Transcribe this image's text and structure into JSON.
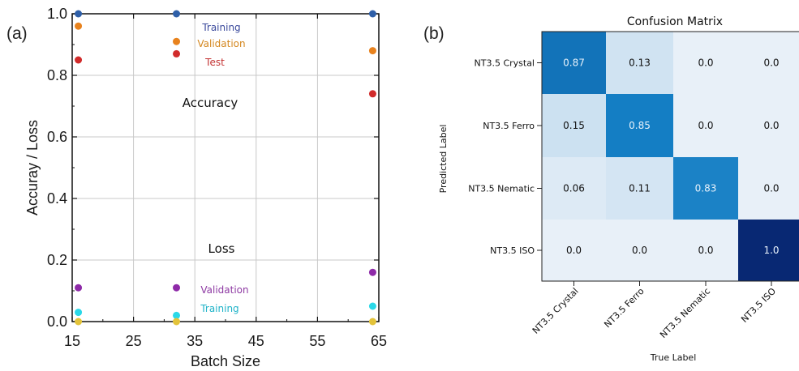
{
  "chart_data": [
    {
      "panel": "(a)",
      "type": "scatter",
      "xlabel": "Batch Size",
      "ylabel": "Accuray  /  Loss",
      "xlim": [
        15,
        65
      ],
      "ylim": [
        0.0,
        1.0
      ],
      "xticks": [
        "15",
        "25",
        "35",
        "45",
        "55",
        "65"
      ],
      "yticks": [
        "0.0",
        "0.2",
        "0.4",
        "0.6",
        "0.8",
        "1.0"
      ],
      "grid": true,
      "section_labels": {
        "accuracy": "Accuracy",
        "loss": "Loss"
      },
      "series": [
        {
          "name": "Training",
          "group": "accuracy",
          "color": "#2e5fa8",
          "label_color": "#3b4a9c",
          "points": [
            [
              16,
              1.0
            ],
            [
              32,
              1.0
            ],
            [
              64,
              1.0
            ]
          ]
        },
        {
          "name": "Validation",
          "group": "accuracy",
          "color": "#e8821d",
          "label_color": "#d4871f",
          "points": [
            [
              16,
              0.96
            ],
            [
              32,
              0.91
            ],
            [
              64,
              0.88
            ]
          ]
        },
        {
          "name": "Test",
          "group": "accuracy",
          "color": "#d12b2b",
          "label_color": "#c43535",
          "points": [
            [
              16,
              0.85
            ],
            [
              32,
              0.87
            ],
            [
              64,
              0.74
            ]
          ]
        },
        {
          "name": "Validation",
          "group": "loss",
          "color": "#8e2aa8",
          "label_color": "#8e3aa3",
          "points": [
            [
              16,
              0.11
            ],
            [
              32,
              0.11
            ],
            [
              64,
              0.16
            ]
          ]
        },
        {
          "name": "Training",
          "group": "loss",
          "color": "#2ad8e8",
          "label_color": "#1fb3c8",
          "points": [
            [
              16,
              0.03
            ],
            [
              32,
              0.02
            ],
            [
              64,
              0.05
            ]
          ]
        },
        {
          "name": "",
          "group": "loss",
          "color": "#e3c33a",
          "label_color": "#e3c33a",
          "points": [
            [
              16,
              0.0
            ],
            [
              32,
              0.0
            ],
            [
              64,
              0.0
            ]
          ]
        }
      ]
    },
    {
      "panel": "(b)",
      "type": "heatmap",
      "title": "Confusion Matrix",
      "xlabel": "True Label",
      "ylabel": "Predicted Label",
      "row_labels": [
        "NT3.5 Crystal",
        "NT3.5 Ferro",
        "NT3.5 Nematic",
        "NT3.5 ISO"
      ],
      "col_labels": [
        "NT3.5 Crystal",
        "NT3.5 Ferro",
        "NT3.5 Nematic",
        "NT3.5 ISO"
      ],
      "values": [
        [
          0.87,
          0.13,
          0.0,
          0.0
        ],
        [
          0.15,
          0.85,
          0.0,
          0.0
        ],
        [
          0.06,
          0.11,
          0.83,
          0.0
        ],
        [
          0.0,
          0.0,
          0.0,
          1.0
        ]
      ],
      "cell_text": [
        [
          "0.87",
          "0.13",
          "0.0",
          "0.0"
        ],
        [
          "0.15",
          "0.85",
          "0.0",
          "0.0"
        ],
        [
          "0.06",
          "0.11",
          "0.83",
          "0.0"
        ],
        [
          "0.0",
          "0.0",
          "0.0",
          "1.0"
        ]
      ],
      "colormap": "Blues"
    }
  ]
}
